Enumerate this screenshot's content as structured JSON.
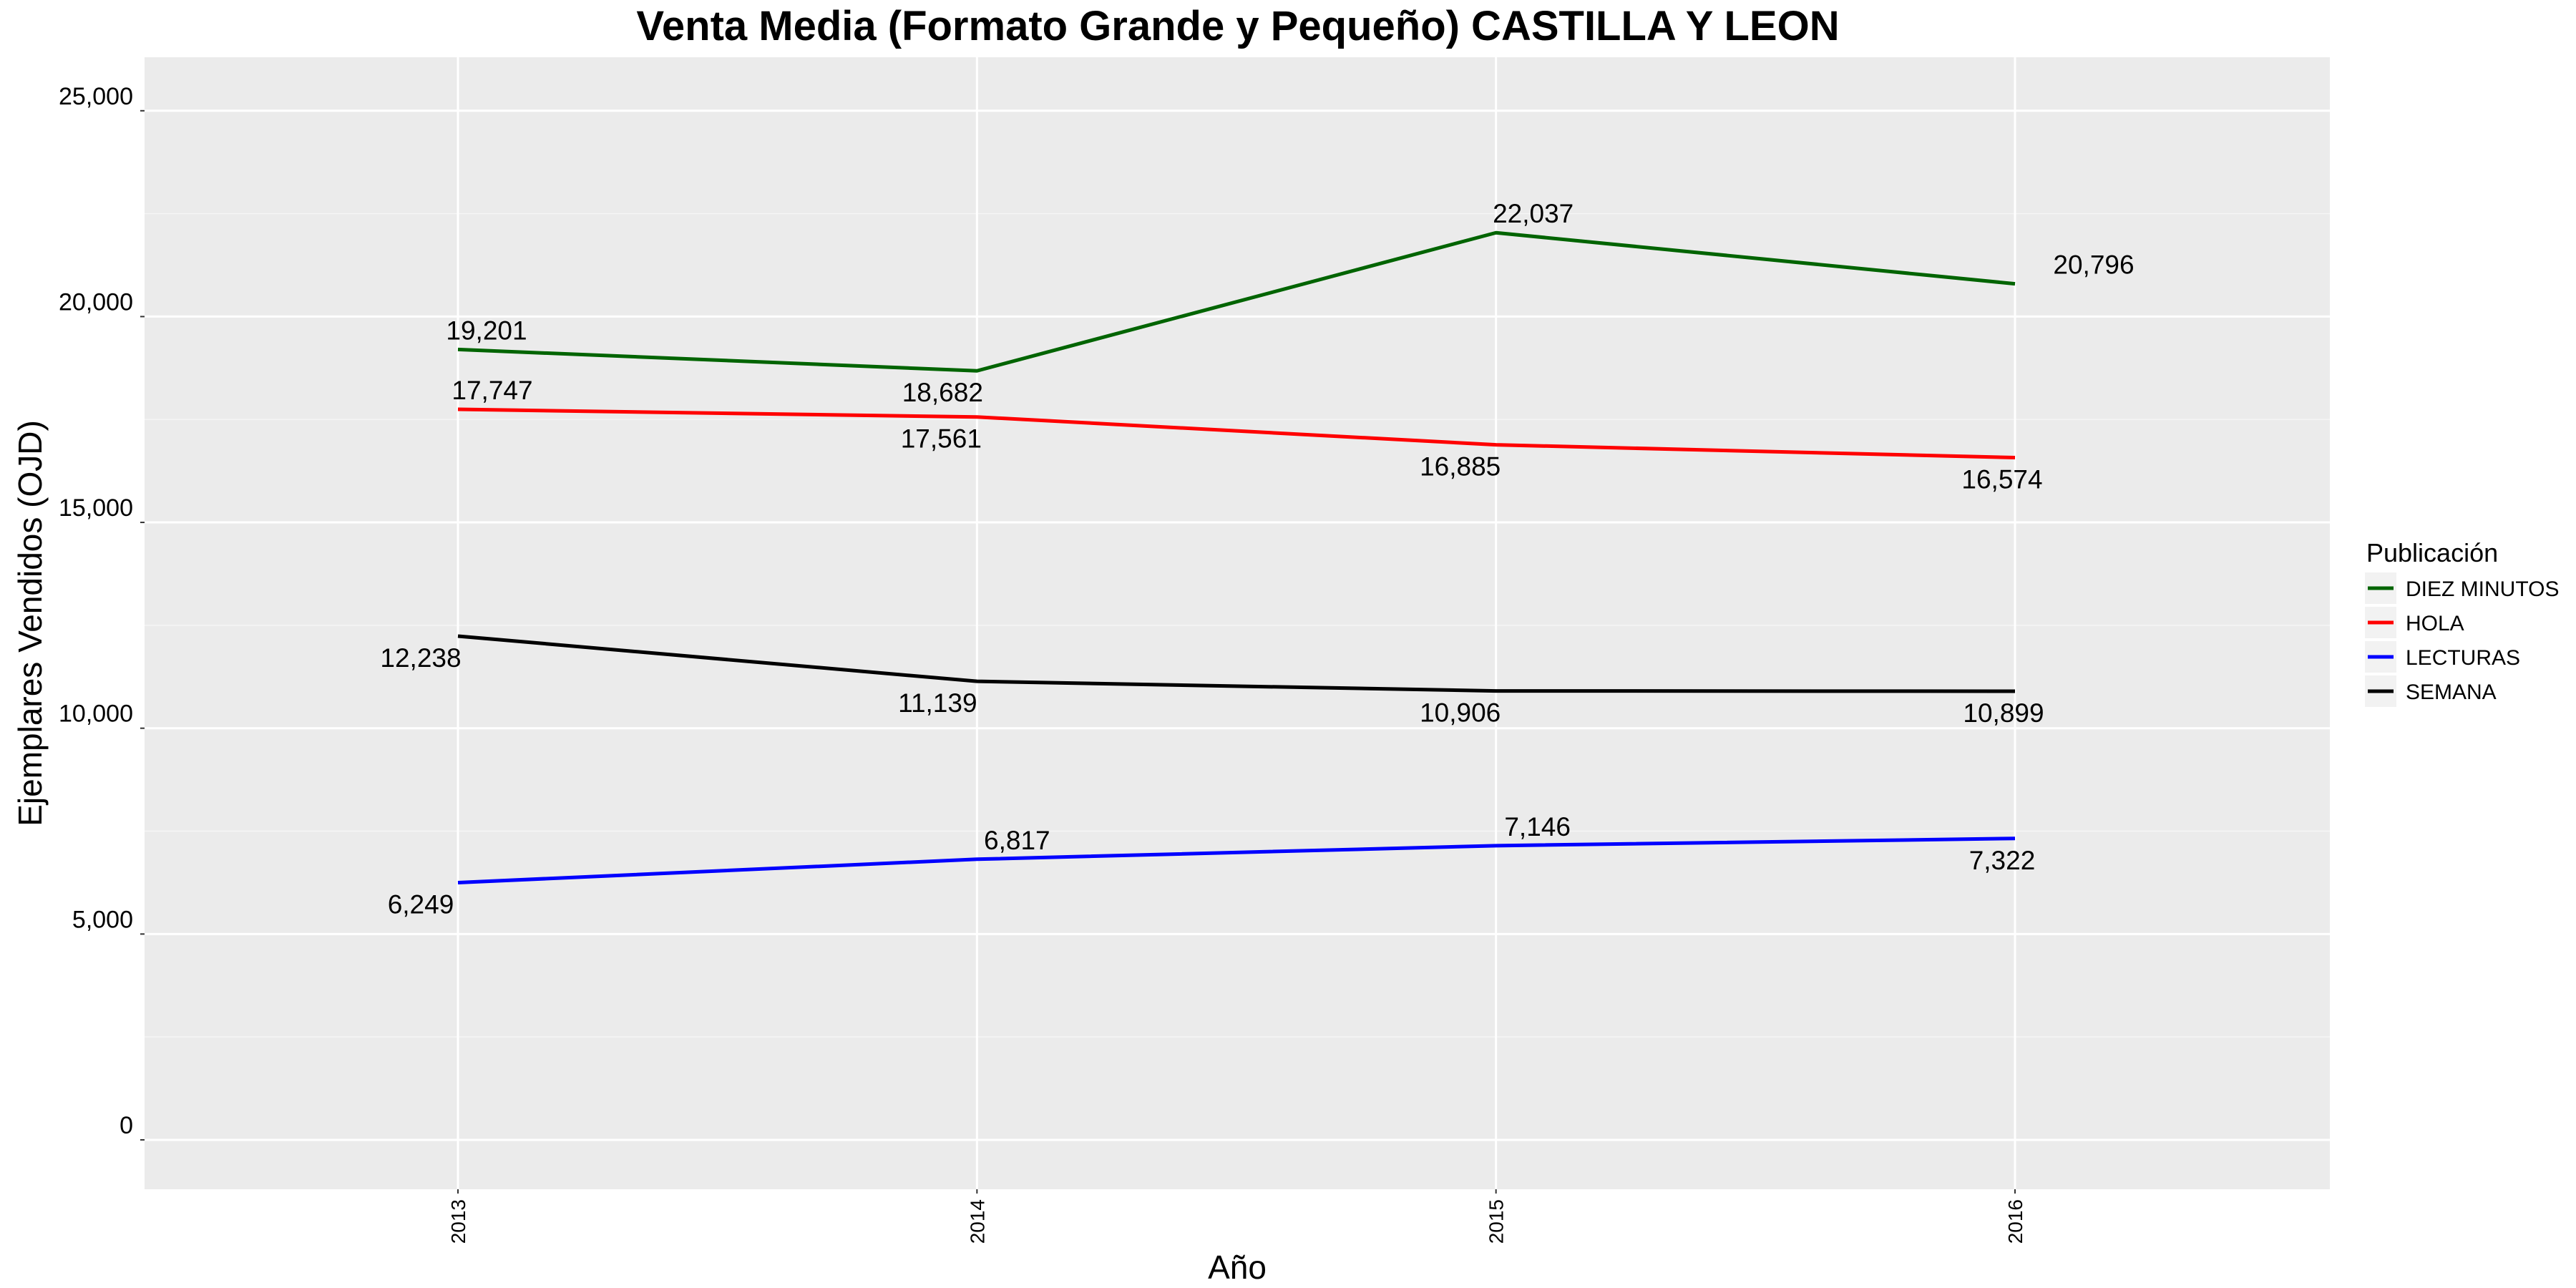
{
  "chart_data": {
    "type": "line",
    "title": "Venta Media (Formato Grande y Pequeño)  CASTILLA Y LEON",
    "xlabel": "Año",
    "ylabel": "Ejemplares Vendidos (OJD)",
    "categories": [
      "2013",
      "2014",
      "2015",
      "2016"
    ],
    "y_ticks": [
      0,
      5000,
      10000,
      15000,
      20000,
      25000
    ],
    "y_tick_labels": [
      "0",
      "5,000",
      "10,000",
      "15,000",
      "20,000",
      "25,000"
    ],
    "ylim": [
      -1200,
      26300
    ],
    "grid": true,
    "legend_position": "right",
    "legend_title": "Publicación",
    "series": [
      {
        "name": "DIEZ MINUTOS",
        "color": "#006400",
        "values": [
          19201,
          18682,
          22037,
          20796
        ],
        "labels": [
          "19,201",
          "18,682",
          "22,037",
          "20,796"
        ]
      },
      {
        "name": "HOLA",
        "color": "#ff0000",
        "values": [
          17747,
          17561,
          16885,
          16574
        ],
        "labels": [
          "17,747",
          "17,561",
          "16,885",
          "16,574"
        ]
      },
      {
        "name": "LECTURAS",
        "color": "#0000ff",
        "values": [
          6249,
          6817,
          7146,
          7322
        ],
        "labels": [
          "6,249",
          "6,817",
          "7,146",
          "7,322"
        ]
      },
      {
        "name": "SEMANA",
        "color": "#000000",
        "values": [
          12238,
          11139,
          10906,
          10899
        ],
        "labels": [
          "12,238",
          "11,139",
          "10,906",
          "10,899"
        ]
      }
    ]
  }
}
